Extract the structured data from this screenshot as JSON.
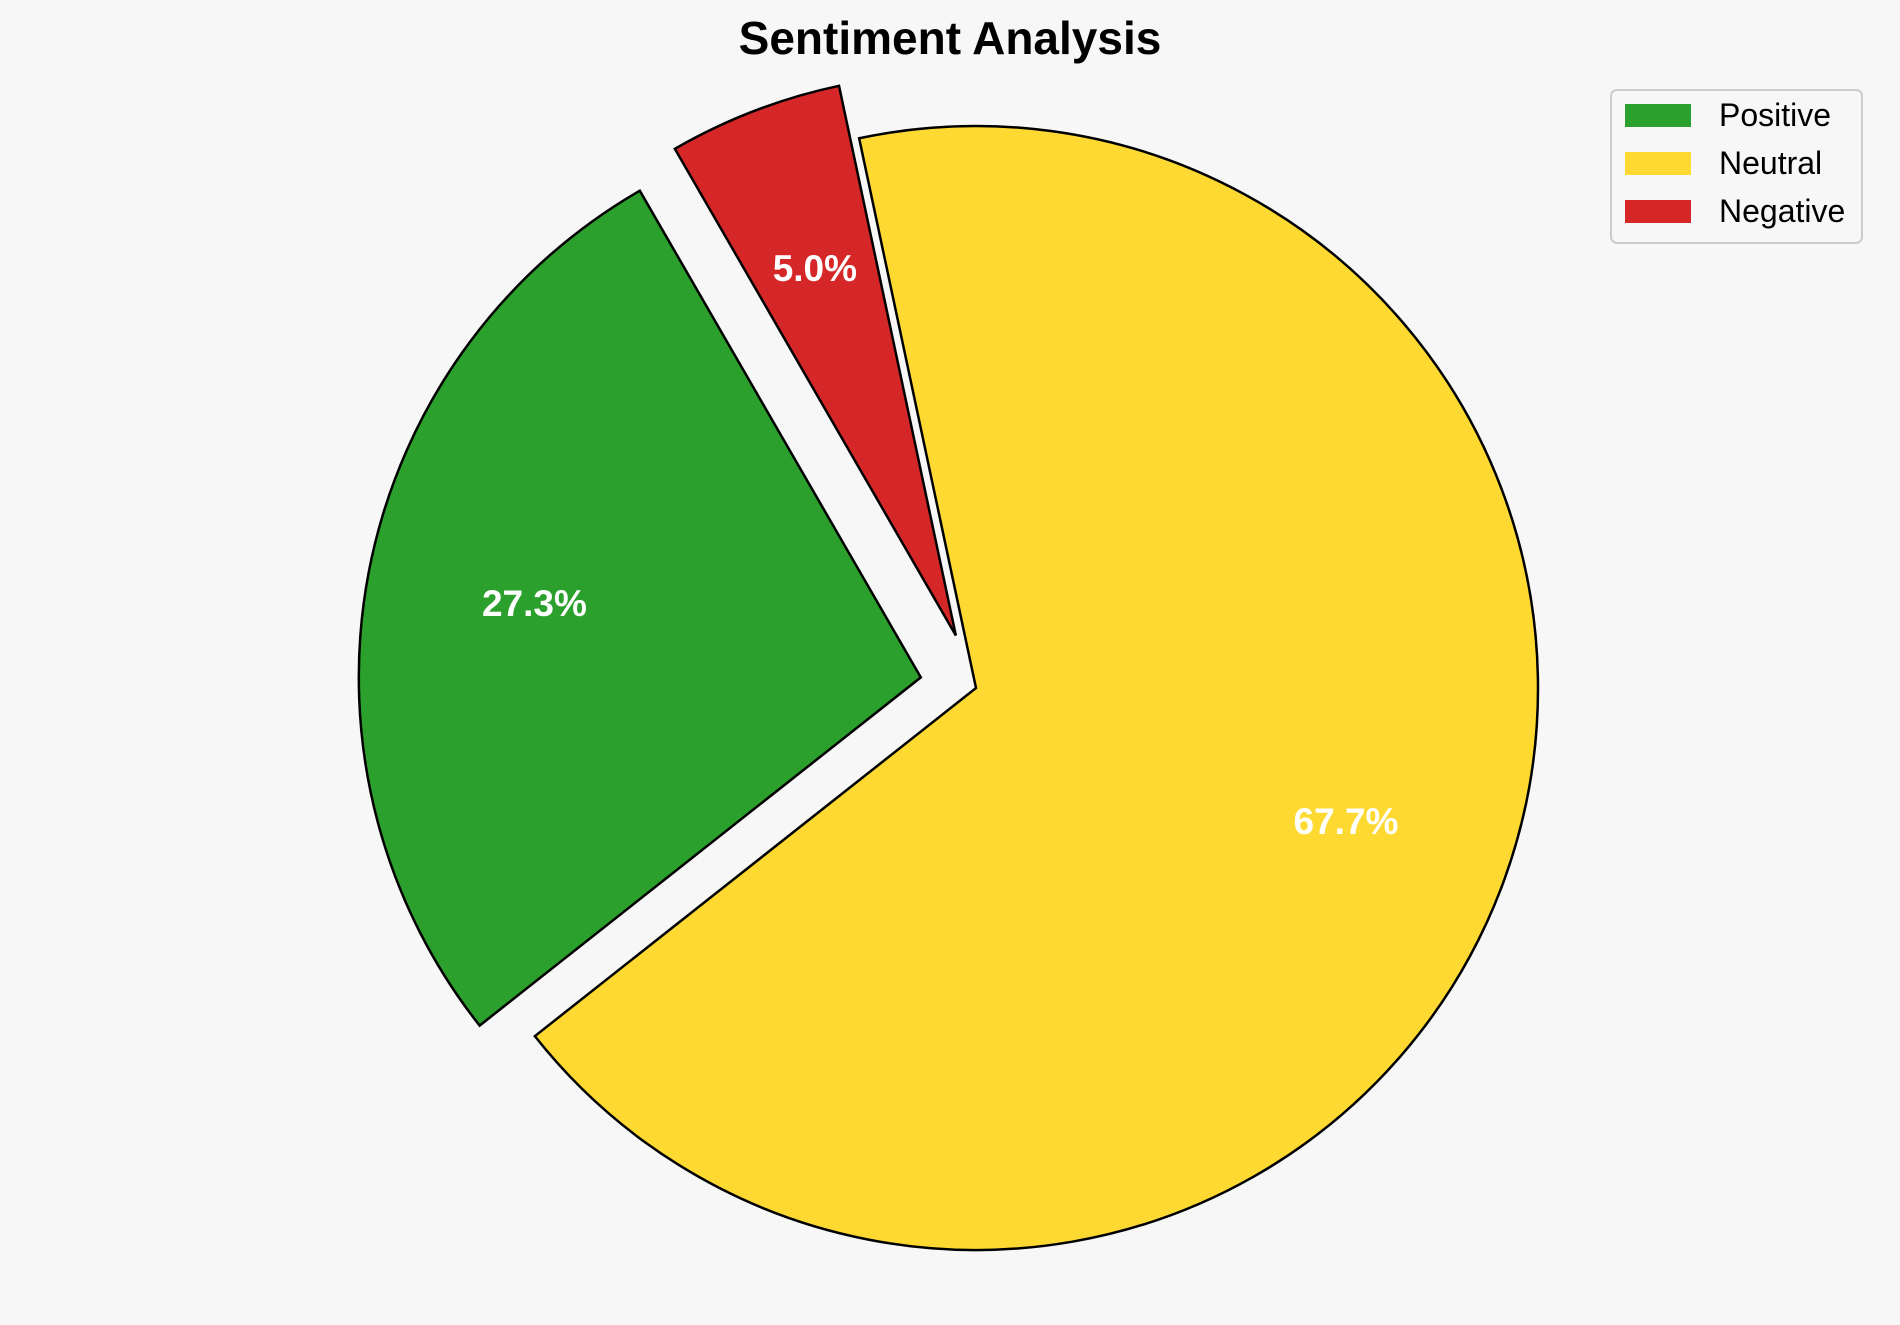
{
  "chart_data": {
    "type": "pie",
    "title": "Sentiment Analysis",
    "start_angle_deg": 120,
    "direction": "counterclockwise",
    "legend_position": "upper right",
    "slices": [
      {
        "name": "Positive",
        "value": 27.3,
        "label": "27.3%",
        "color": "#2ca02c",
        "exploded": true
      },
      {
        "name": "Neutral",
        "value": 67.7,
        "label": "67.7%",
        "color": "#fdd931",
        "exploded": false
      },
      {
        "name": "Negative",
        "value": 5.0,
        "label": "5.0%",
        "color": "#d62728",
        "exploded": true
      }
    ]
  }
}
